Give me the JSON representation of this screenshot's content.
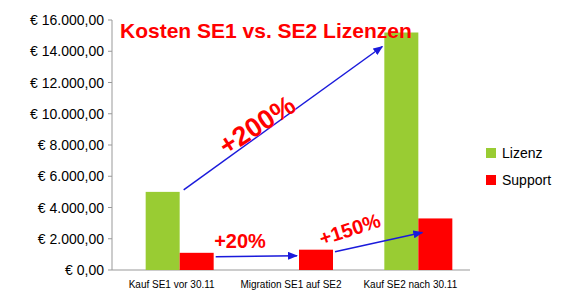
{
  "chart_data": {
    "type": "bar",
    "title": "Kosten SE1 vs. SE2 Lizenzen",
    "categories": [
      "Kauf SE1 vor 30.11",
      "Migration SE1 auf SE2",
      "Kauf SE2 nach 30.11"
    ],
    "series": [
      {
        "name": "Lizenz",
        "color": "#99cc33",
        "values": [
          5000,
          null,
          15200
        ]
      },
      {
        "name": "Support",
        "color": "#ff0000",
        "values": [
          1100,
          1300,
          3300
        ]
      }
    ],
    "ylim": [
      0,
      16000
    ],
    "yticks": [
      {
        "value": 0,
        "label": "€ 0,00"
      },
      {
        "value": 2000,
        "label": "€ 2.000,00"
      },
      {
        "value": 4000,
        "label": "€ 4.000,00"
      },
      {
        "value": 6000,
        "label": "€ 6.000,00"
      },
      {
        "value": 8000,
        "label": "€ 8.000,00"
      },
      {
        "value": 10000,
        "label": "€ 10.000,00"
      },
      {
        "value": 12000,
        "label": "€ 12.000,00"
      },
      {
        "value": 14000,
        "label": "€ 14.000,00"
      },
      {
        "value": 16000,
        "label": "€ 16.000,00"
      }
    ],
    "annotations": [
      "+200%",
      "+20%",
      "+150%"
    ],
    "grid": false,
    "legend": "right"
  }
}
